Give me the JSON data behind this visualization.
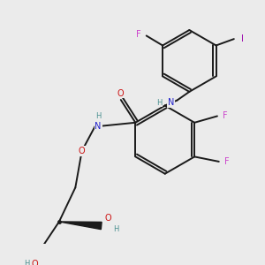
{
  "bg_color": "#ebebeb",
  "bond_color": "#1a1a1a",
  "atom_colors": {
    "C": "#1a1a1a",
    "H": "#4a9090",
    "N": "#2222cc",
    "O": "#cc1111",
    "F": "#cc44cc",
    "I": "#9900aa"
  },
  "lw": 1.4,
  "fs": 7.0,
  "fs_small": 6.0
}
